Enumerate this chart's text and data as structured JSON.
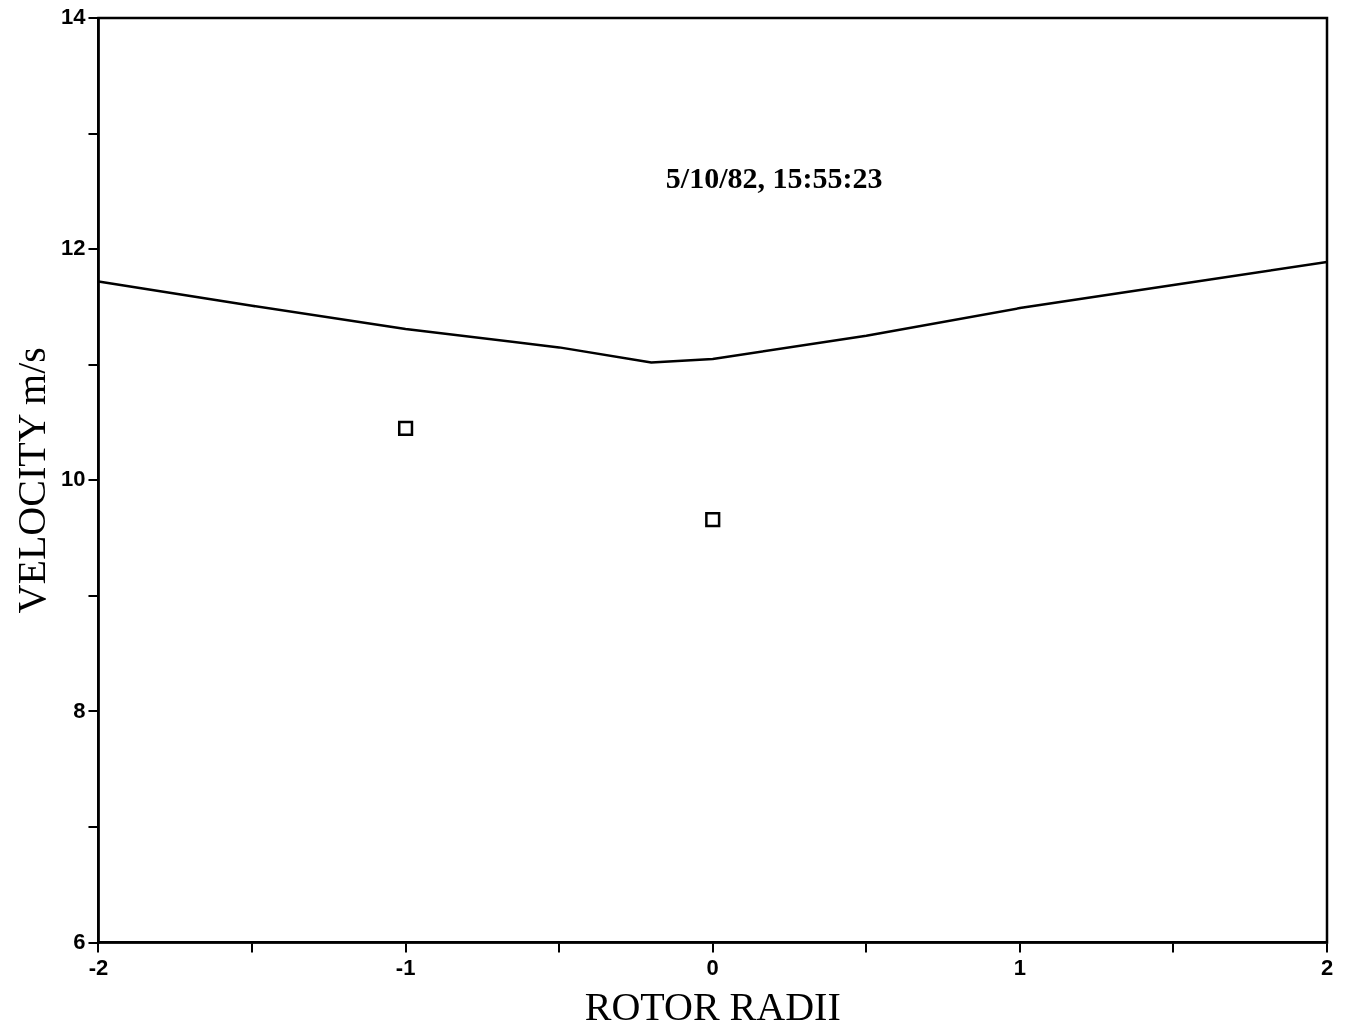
{
  "chart_data": {
    "type": "line",
    "xlabel": "ROTOR RADII",
    "ylabel": "VELOCITY m/s",
    "annotations": [
      "5/10/82, 15:55:23"
    ],
    "xlim": [
      -2,
      2
    ],
    "ylim": [
      6,
      14
    ],
    "xticks": [
      -2,
      {
        "value": -1.5,
        "label": null
      },
      -1,
      {
        "value": -0.5,
        "label": null
      },
      0,
      {
        "value": 0.5,
        "label": null
      },
      1,
      {
        "value": 1.5,
        "label": null
      },
      2
    ],
    "yticks": [
      6,
      {
        "value": 7,
        "label": null
      },
      8,
      {
        "value": 9,
        "label": null
      },
      10,
      {
        "value": 11,
        "label": null
      },
      12,
      {
        "value": 13,
        "label": null
      },
      14
    ],
    "grid": false,
    "legend": false,
    "series": [
      {
        "color": "#000000",
        "marker": "none",
        "line_style": "solid",
        "x": [
          -2,
          -1.5,
          -1,
          -0.5,
          -0.2,
          0,
          0.5,
          1,
          1.5,
          2
        ],
        "values": [
          11.72,
          11.51,
          11.31,
          11.15,
          11.02,
          11.05,
          11.25,
          11.49,
          11.69,
          11.89
        ]
      },
      {
        "type": "scatter",
        "color": "#000000",
        "marker": "square",
        "x": [
          -1,
          0
        ],
        "values": [
          10.45,
          9.66
        ]
      }
    ]
  }
}
